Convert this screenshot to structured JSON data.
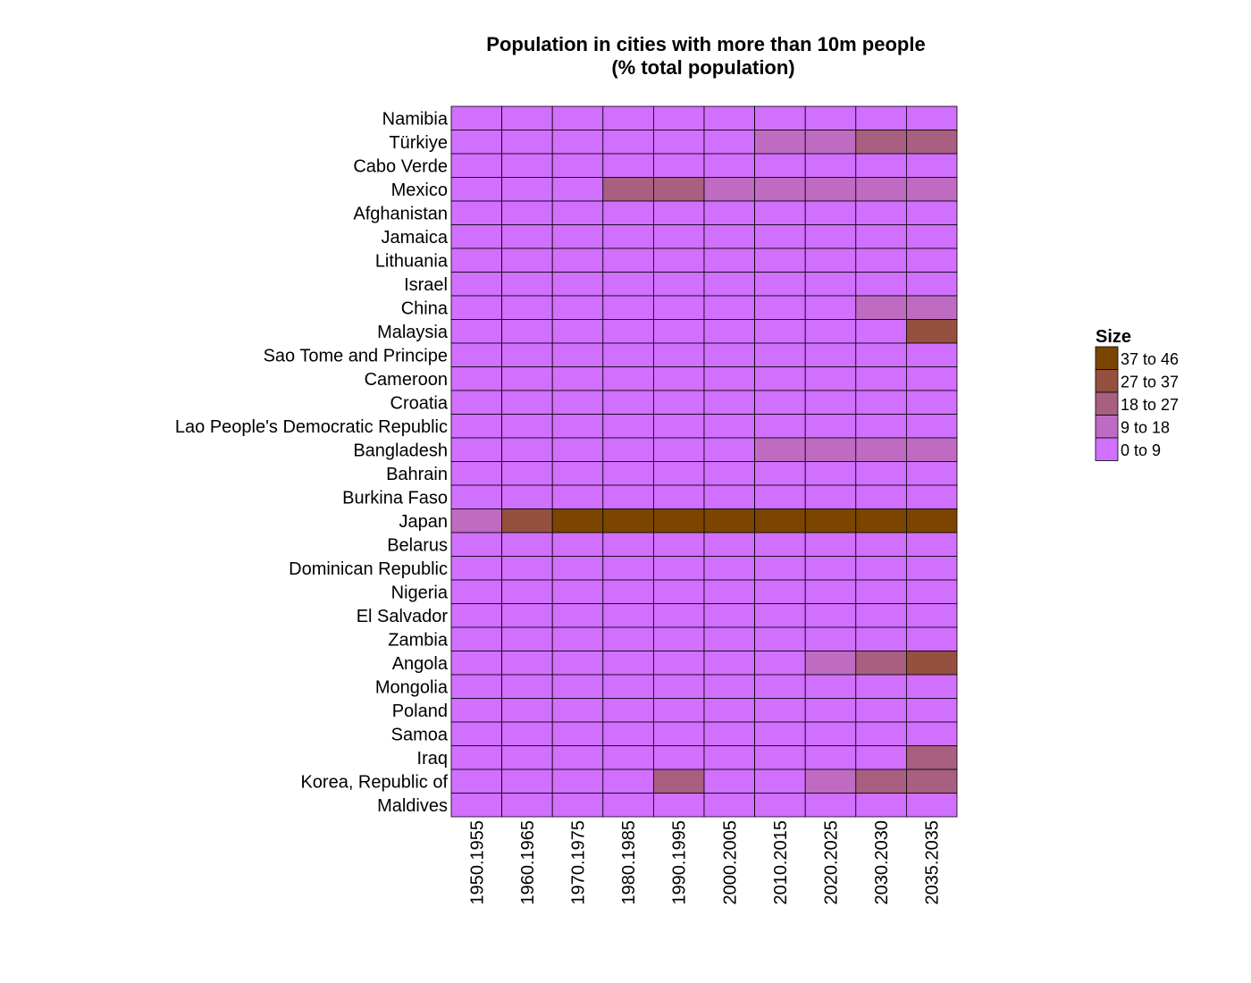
{
  "chart_data": {
    "type": "heatmap",
    "title": "Population in cities with more than 10m people",
    "subtitle": "(% total population)",
    "xlabel": "",
    "ylabel": "",
    "x": [
      "1950.1955",
      "1960.1965",
      "1970.1975",
      "1980.1985",
      "1990.1995",
      "2000.2005",
      "2010.2015",
      "2020.2025",
      "2030.2030",
      "2035.2035"
    ],
    "y": [
      "Namibia",
      "Türkiye",
      "Cabo Verde",
      "Mexico",
      "Afghanistan",
      "Jamaica",
      "Lithuania",
      "Israel",
      "China",
      "Malaysia",
      "Sao Tome and Principe",
      "Cameroon",
      "Croatia",
      "Lao People's Democratic Republic",
      "Bangladesh",
      "Bahrain",
      "Burkina Faso",
      "Japan",
      "Belarus",
      "Dominican Republic",
      "Nigeria",
      "El Salvador",
      "Zambia",
      "Angola",
      "Mongolia",
      "Poland",
      "Samoa",
      "Iraq",
      "Korea, Republic of",
      "Maldives"
    ],
    "values": [
      [
        0,
        0,
        0,
        0,
        0,
        0,
        0,
        0,
        0,
        0
      ],
      [
        0,
        0,
        0,
        0,
        0,
        0,
        13,
        14,
        20,
        21
      ],
      [
        0,
        0,
        0,
        0,
        0,
        0,
        0,
        0,
        0,
        0
      ],
      [
        0,
        0,
        0,
        19,
        20,
        17,
        17,
        17,
        17,
        17
      ],
      [
        0,
        0,
        0,
        0,
        0,
        0,
        0,
        0,
        0,
        0
      ],
      [
        0,
        0,
        0,
        0,
        0,
        0,
        0,
        0,
        0,
        0
      ],
      [
        0,
        0,
        0,
        0,
        0,
        0,
        0,
        0,
        0,
        0
      ],
      [
        0,
        0,
        0,
        0,
        0,
        0,
        0,
        0,
        0,
        0
      ],
      [
        0,
        0,
        0,
        0,
        0,
        0,
        0,
        0,
        10,
        11
      ],
      [
        0,
        0,
        0,
        0,
        0,
        0,
        0,
        0,
        0,
        29
      ],
      [
        0,
        0,
        0,
        0,
        0,
        0,
        0,
        0,
        0,
        0
      ],
      [
        0,
        0,
        0,
        0,
        0,
        0,
        0,
        0,
        0,
        0
      ],
      [
        0,
        0,
        0,
        0,
        0,
        0,
        0,
        0,
        0,
        0
      ],
      [
        0,
        0,
        0,
        0,
        0,
        0,
        0,
        0,
        0,
        0
      ],
      [
        0,
        0,
        0,
        0,
        0,
        0,
        10,
        11,
        12,
        13
      ],
      [
        0,
        0,
        0,
        0,
        0,
        0,
        0,
        0,
        0,
        0
      ],
      [
        0,
        0,
        0,
        0,
        0,
        0,
        0,
        0,
        0,
        0
      ],
      [
        14,
        32,
        40,
        41,
        42,
        43,
        44,
        45,
        45,
        45
      ],
      [
        0,
        0,
        0,
        0,
        0,
        0,
        0,
        0,
        0,
        0
      ],
      [
        0,
        0,
        0,
        0,
        0,
        0,
        0,
        0,
        0,
        0
      ],
      [
        0,
        0,
        0,
        0,
        0,
        0,
        0,
        0,
        0,
        0
      ],
      [
        0,
        0,
        0,
        0,
        0,
        0,
        0,
        0,
        0,
        0
      ],
      [
        0,
        0,
        0,
        0,
        0,
        0,
        0,
        0,
        0,
        0
      ],
      [
        0,
        0,
        0,
        0,
        0,
        0,
        0,
        12,
        20,
        28
      ],
      [
        0,
        0,
        0,
        0,
        0,
        0,
        0,
        0,
        0,
        0
      ],
      [
        0,
        0,
        0,
        0,
        0,
        0,
        0,
        0,
        0,
        0
      ],
      [
        0,
        0,
        0,
        0,
        0,
        0,
        0,
        0,
        0,
        0
      ],
      [
        0,
        0,
        0,
        0,
        0,
        0,
        0,
        0,
        0,
        19
      ],
      [
        0,
        0,
        0,
        0,
        22,
        0,
        0,
        14,
        20,
        21
      ],
      [
        0,
        0,
        0,
        0,
        0,
        0,
        0,
        0,
        0,
        0
      ]
    ],
    "legend": {
      "title": "Size",
      "placement": "right",
      "bins": [
        {
          "label": "37  to  46",
          "min": 37,
          "max": 46,
          "color": "#7b4500"
        },
        {
          "label": "27  to  37",
          "min": 27,
          "max": 37,
          "color": "#955040"
        },
        {
          "label": "18  to  27",
          "min": 18,
          "max": 27,
          "color": "#a85f80"
        },
        {
          "label": "9  to  18",
          "min": 9,
          "max": 18,
          "color": "#bf6bc2"
        },
        {
          "label": "0  to  9",
          "min": 0,
          "max": 9,
          "color": "#d16fff"
        }
      ]
    },
    "grid": false
  }
}
